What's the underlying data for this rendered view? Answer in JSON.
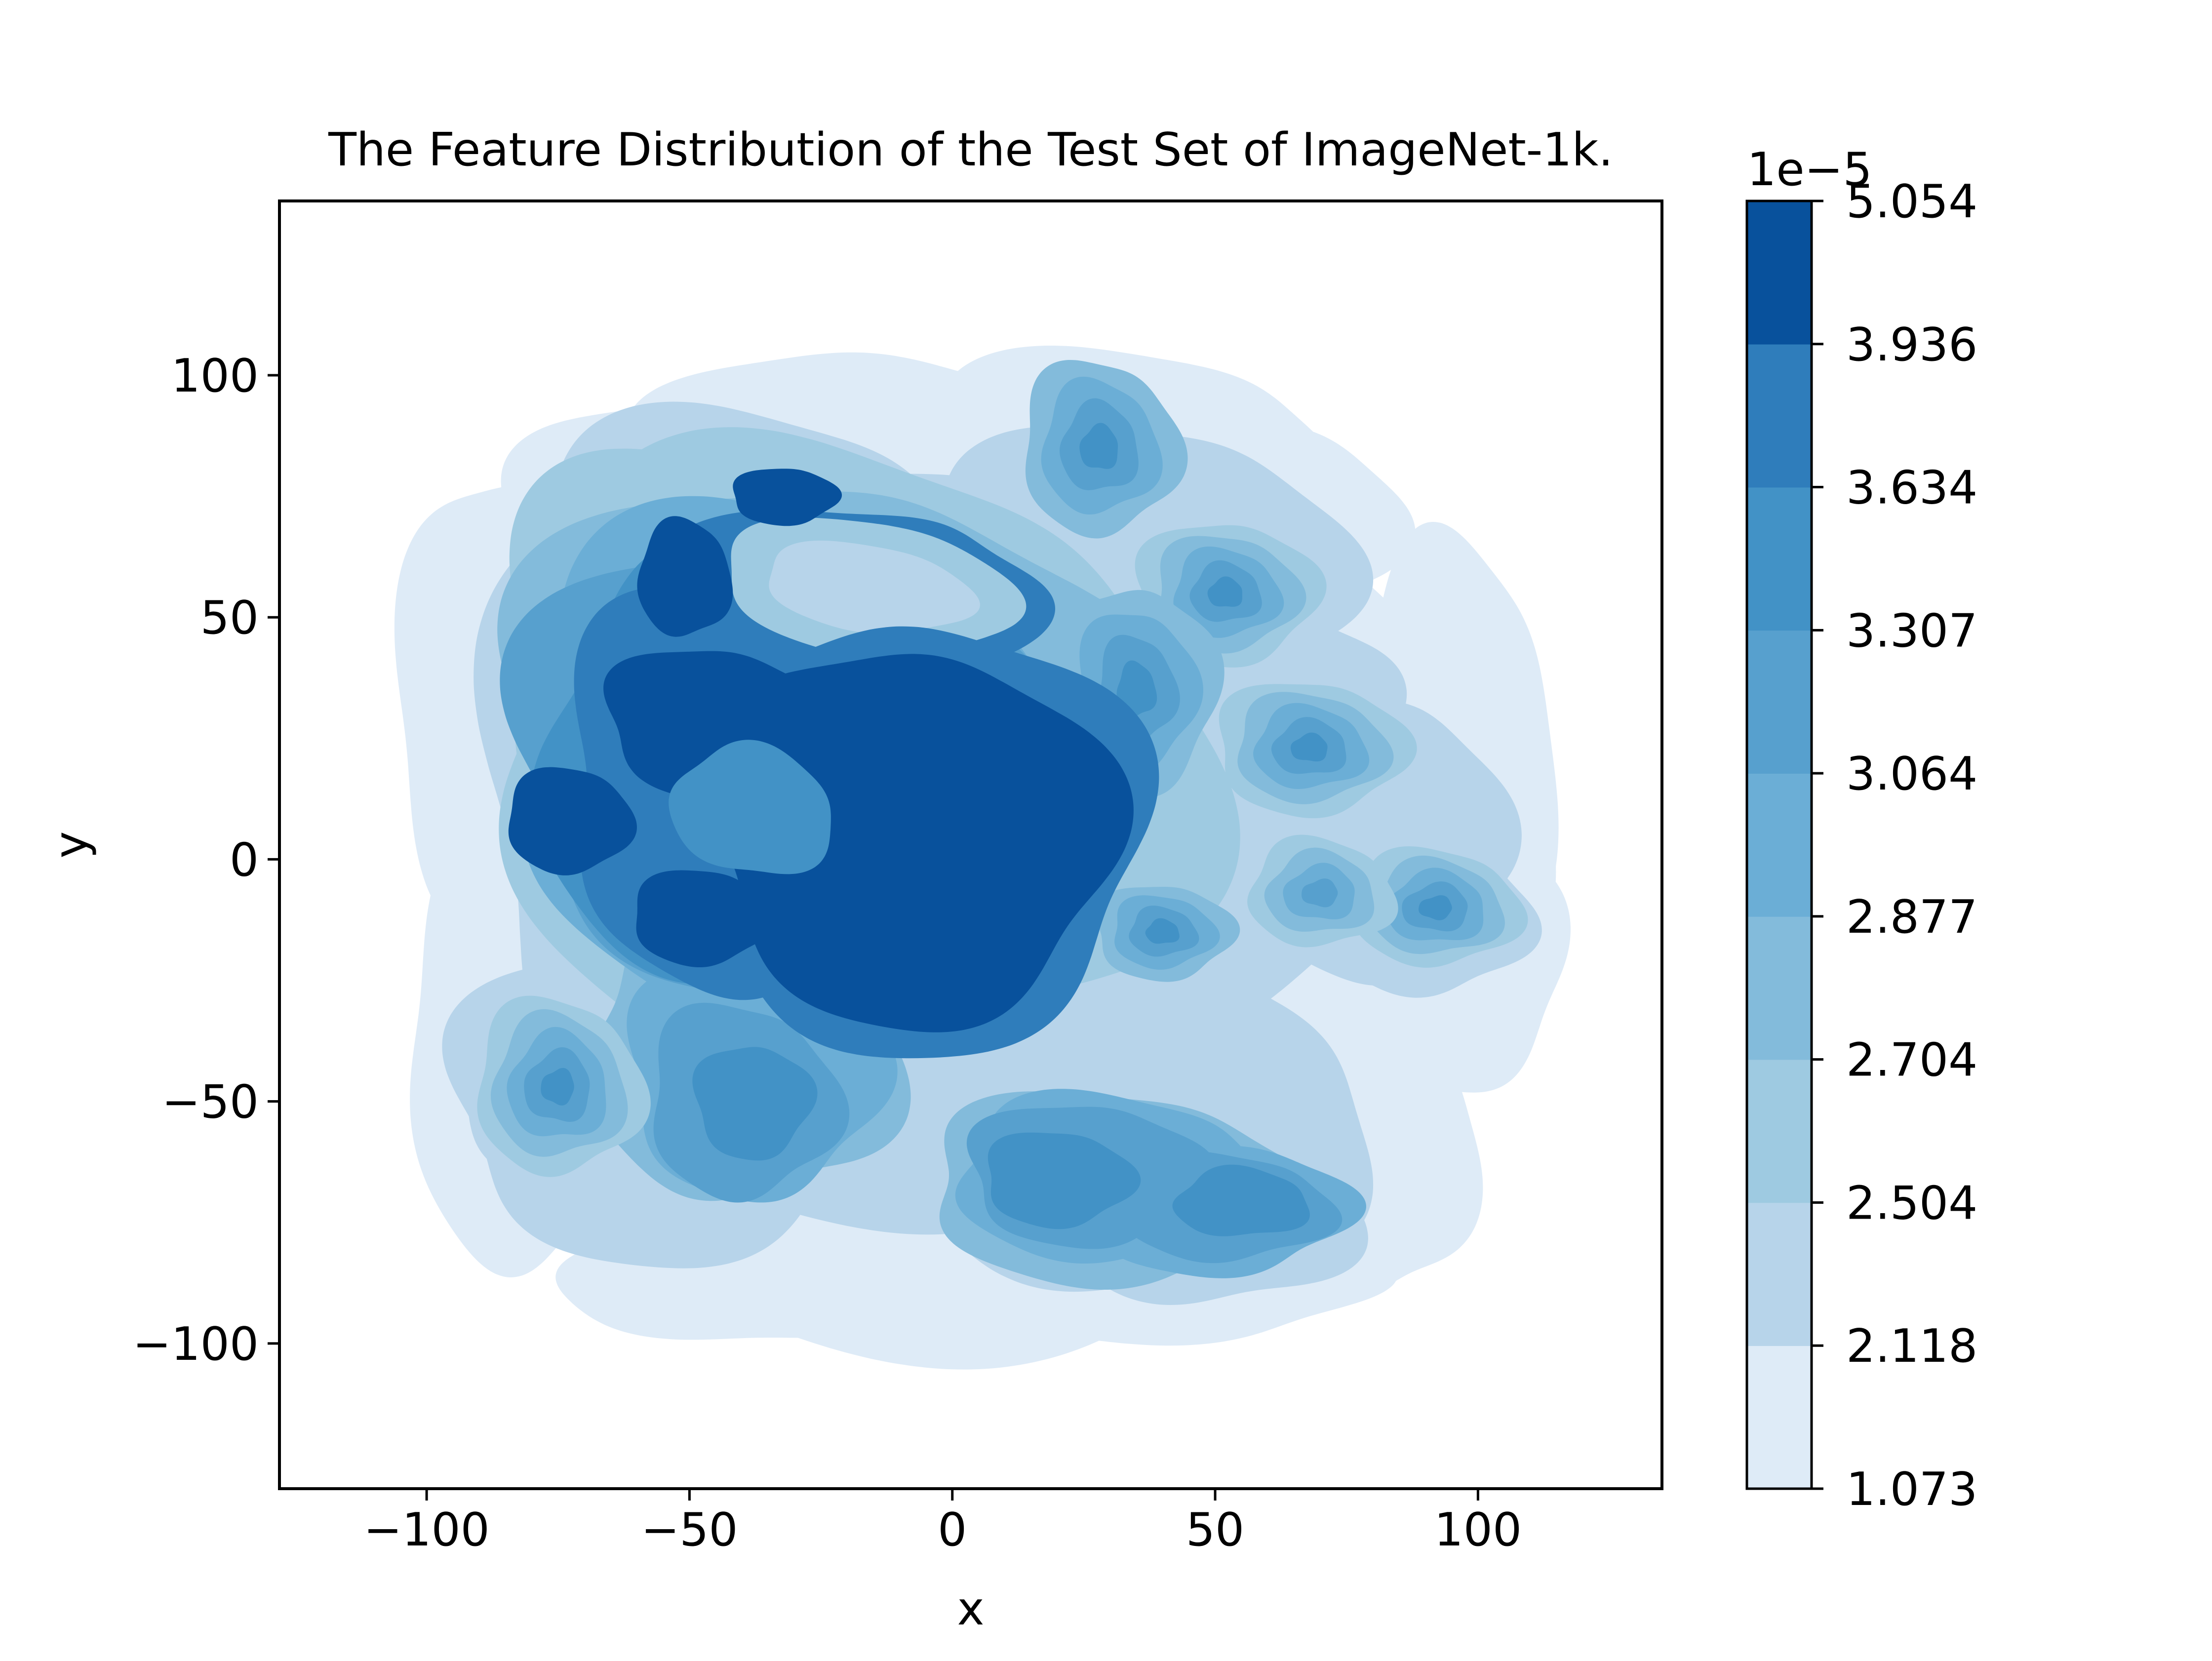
{
  "chart_data": {
    "type": "kde-contour",
    "title": "The Feature Distribution of the Test Set of ImageNet-1k.",
    "xlabel": "x",
    "ylabel": "y",
    "xlim": [
      -128,
      135
    ],
    "ylim": [
      -130,
      136
    ],
    "xticks": [
      -100,
      -50,
      0,
      50,
      100
    ],
    "xtick_labels": [
      "−100",
      "−50",
      "0",
      "50",
      "100"
    ],
    "yticks": [
      -100,
      -50,
      0,
      50,
      100
    ],
    "ytick_labels": [
      "−100",
      "−50",
      "0",
      "50",
      "100"
    ],
    "grid": false,
    "legend": "none",
    "colorbar": {
      "offset_label": "1e−5",
      "levels": [
        1.073,
        2.118,
        2.504,
        2.704,
        2.877,
        3.064,
        3.307,
        3.634,
        3.936,
        5.054
      ],
      "level_labels": [
        "1.073",
        "2.118",
        "2.504",
        "2.704",
        "2.877",
        "3.064",
        "3.307",
        "3.634",
        "3.936",
        "5.054"
      ],
      "colors": [
        "#deebf7",
        "#b7d4ea",
        "#9ecae1",
        "#83bbdb",
        "#6baed6",
        "#57a0ce",
        "#4292c6",
        "#2f7dbb",
        "#08519c"
      ]
    },
    "density_peaks": [
      {
        "x": -8,
        "y": 5,
        "level": 9
      },
      {
        "x": -45,
        "y": 28,
        "level": 9
      },
      {
        "x": -73,
        "y": 8,
        "level": 9
      },
      {
        "x": -51,
        "y": 58,
        "level": 9
      },
      {
        "x": -32,
        "y": 75,
        "level": 9
      },
      {
        "x": -48,
        "y": -12,
        "level": 9
      },
      {
        "x": -38,
        "y": 10,
        "level": 7
      },
      {
        "x": 20,
        "y": -65,
        "level": 7
      },
      {
        "x": 52,
        "y": 55,
        "level": 6
      },
      {
        "x": 68,
        "y": 23,
        "level": 6
      },
      {
        "x": 92,
        "y": -10,
        "level": 6
      },
      {
        "x": -75,
        "y": -47,
        "level": 6
      },
      {
        "x": -37,
        "y": -49,
        "level": 6
      }
    ]
  }
}
